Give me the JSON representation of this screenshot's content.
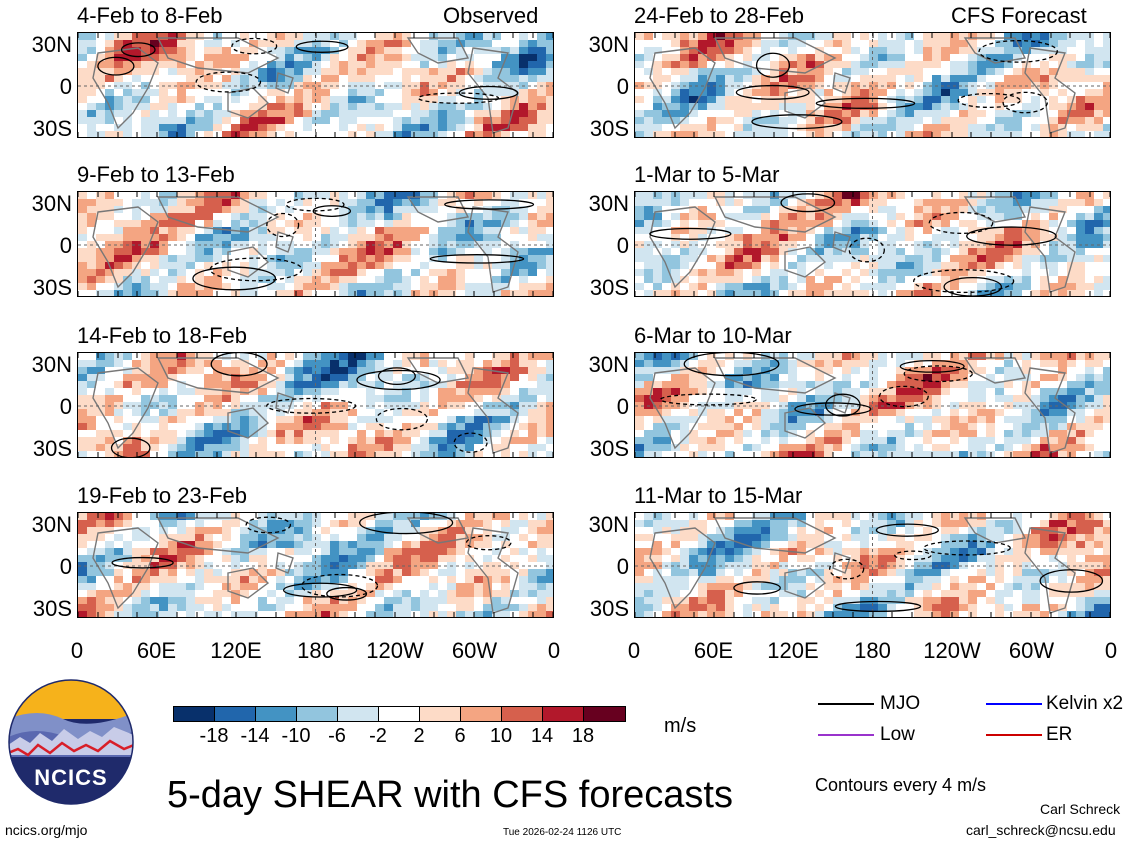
{
  "columns": {
    "left_header": "Observed",
    "right_header": "CFS Forecast"
  },
  "panels_left": [
    {
      "title": "4-Feb to 8-Feb"
    },
    {
      "title": "9-Feb to 13-Feb"
    },
    {
      "title": "14-Feb to 18-Feb"
    },
    {
      "title": "19-Feb to 23-Feb"
    }
  ],
  "panels_right": [
    {
      "title": "24-Feb to 28-Feb"
    },
    {
      "title": "1-Mar to 5-Mar"
    },
    {
      "title": "6-Mar to 10-Mar"
    },
    {
      "title": "11-Mar to 15-Mar"
    }
  ],
  "axes": {
    "y_ticks": [
      "30N",
      "0",
      "30S"
    ],
    "x_ticks": [
      "0",
      "60E",
      "120E",
      "180",
      "120W",
      "60W",
      "0"
    ]
  },
  "colorbar": {
    "labels": [
      "-18",
      "-14",
      "-10",
      "-6",
      "-2",
      "2",
      "6",
      "10",
      "14",
      "18"
    ],
    "colors": [
      "#08306b",
      "#2166ac",
      "#4393c3",
      "#92c5de",
      "#d1e5f0",
      "#ffffff",
      "#fddbc7",
      "#f4a582",
      "#d6604d",
      "#b2182b",
      "#67001f"
    ],
    "units": "m/s"
  },
  "legend": {
    "items": [
      {
        "label": "MJO",
        "color": "#000000"
      },
      {
        "label": "Kelvin x2",
        "color": "#0000ff"
      },
      {
        "label": "Low",
        "color": "#9933cc"
      },
      {
        "label": "ER",
        "color": "#cc0000"
      }
    ],
    "contour_note": "Contours every 4 m/s"
  },
  "main_title": "5-day SHEAR with CFS forecasts",
  "logo_text": "NCICS",
  "footer": {
    "url": "ncics.org/mjo",
    "timestamp": "Tue 2026-02-24 1126 UTC",
    "author": "Carl Schreck",
    "email": "carl_schreck@ncsu.edu"
  },
  "chart_data": {
    "type": "heatmap",
    "title": "5-day SHEAR with CFS forecasts",
    "variable": "vertical wind shear",
    "units": "m/s",
    "x_range_deg": [
      0,
      360
    ],
    "y_range_deg": [
      -40,
      40
    ],
    "x_tick_labels": [
      "0",
      "60E",
      "120E",
      "180",
      "120W",
      "60W",
      "0"
    ],
    "y_tick_labels": [
      "30N",
      "0",
      "30S"
    ],
    "color_levels": [
      -18,
      -14,
      -10,
      -6,
      -2,
      2,
      6,
      10,
      14,
      18
    ],
    "contour_interval": 4,
    "panels": [
      {
        "period": "4-Feb to 8-Feb",
        "source": "Observed"
      },
      {
        "period": "9-Feb to 13-Feb",
        "source": "Observed"
      },
      {
        "period": "14-Feb to 18-Feb",
        "source": "Observed"
      },
      {
        "period": "19-Feb to 23-Feb",
        "source": "Observed"
      },
      {
        "period": "24-Feb to 28-Feb",
        "source": "CFS Forecast"
      },
      {
        "period": "1-Mar to 5-Mar",
        "source": "CFS Forecast"
      },
      {
        "period": "6-Mar to 10-Mar",
        "source": "CFS Forecast"
      },
      {
        "period": "11-Mar to 15-Mar",
        "source": "CFS Forecast"
      }
    ],
    "legend": [
      "MJO",
      "Kelvin x2",
      "Low",
      "ER"
    ]
  }
}
